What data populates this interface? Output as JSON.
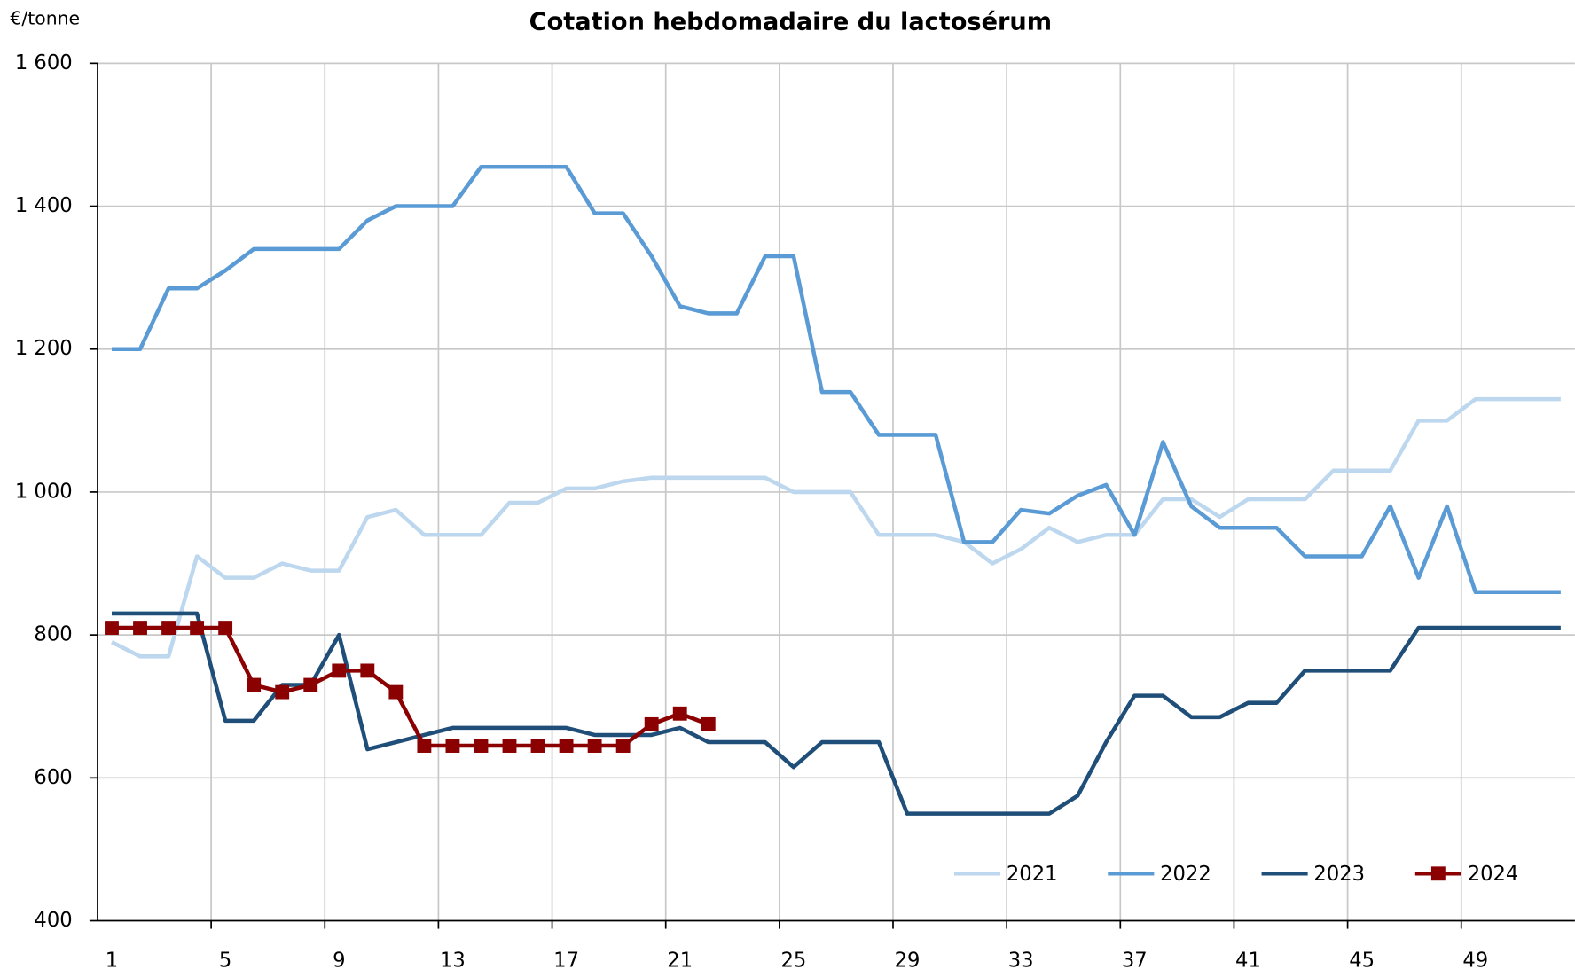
{
  "chart_data": {
    "type": "line",
    "title": "Cotation hebdomadaire  du lactosérum",
    "y_label": "€/tonne",
    "categories": [
      "1",
      null,
      null,
      null,
      "5",
      null,
      null,
      null,
      "9",
      null,
      null,
      null,
      "13",
      null,
      null,
      null,
      "17",
      null,
      null,
      null,
      "21",
      null,
      null,
      null,
      "25",
      null,
      null,
      null,
      "29",
      null,
      null,
      null,
      "33",
      null,
      null,
      null,
      "37",
      null,
      null,
      null,
      "41",
      null,
      null,
      null,
      "45",
      null,
      null,
      null,
      "49",
      null,
      null,
      null
    ],
    "ylim": [
      400,
      1600
    ],
    "yticks": [
      400,
      600,
      800,
      {
        "value": 1000,
        "label": "1 000"
      },
      {
        "value": 1200,
        "label": "1 200"
      },
      {
        "value": 1400,
        "label": "1 400"
      },
      {
        "value": 1600,
        "label": "1 600"
      }
    ],
    "grid": true,
    "legend": "bottom-right",
    "series": [
      {
        "name": "2021",
        "color": "#bdd7ee",
        "values": [
          790,
          770,
          770,
          910,
          880,
          880,
          900,
          890,
          890,
          965,
          975,
          940,
          940,
          940,
          985,
          985,
          1005,
          1005,
          1015,
          1020,
          1020,
          1020,
          1020,
          1020,
          1000,
          1000,
          1000,
          940,
          940,
          940,
          930,
          900,
          920,
          950,
          930,
          940,
          940,
          990,
          990,
          965,
          990,
          990,
          990,
          1030,
          1030,
          1030,
          1100,
          1100,
          1130,
          1130,
          1130,
          1130
        ]
      },
      {
        "name": "2022",
        "color": "#5b9bd5",
        "values": [
          1200,
          1200,
          1285,
          1285,
          1310,
          1340,
          1340,
          1340,
          1340,
          1380,
          1400,
          1400,
          1400,
          1455,
          1455,
          1455,
          1455,
          1390,
          1390,
          1330,
          1260,
          1250,
          1250,
          1330,
          1330,
          1140,
          1140,
          1080,
          1080,
          1080,
          930,
          930,
          975,
          970,
          995,
          1010,
          940,
          1070,
          980,
          950,
          950,
          950,
          910,
          910,
          910,
          980,
          880,
          980,
          860,
          860,
          860,
          860
        ]
      },
      {
        "name": "2023",
        "color": "#1f4e79",
        "values": [
          830,
          830,
          830,
          830,
          680,
          680,
          730,
          730,
          800,
          640,
          650,
          660,
          670,
          670,
          670,
          670,
          670,
          660,
          660,
          660,
          670,
          650,
          650,
          650,
          615,
          650,
          650,
          650,
          550,
          550,
          550,
          550,
          550,
          550,
          575,
          650,
          715,
          715,
          685,
          685,
          705,
          705,
          750,
          750,
          750,
          750,
          810,
          810,
          810,
          810,
          810,
          810
        ]
      },
      {
        "name": "2024",
        "color": "#8b0000",
        "marker": "square",
        "values": [
          810,
          810,
          810,
          810,
          810,
          730,
          720,
          730,
          750,
          750,
          720,
          645,
          645,
          645,
          645,
          645,
          645,
          645,
          645,
          675,
          690,
          675,
          null,
          null,
          null,
          null,
          null,
          null,
          null,
          null,
          null,
          null,
          null,
          null,
          null,
          null,
          null,
          null,
          null,
          null,
          null,
          null,
          null,
          null,
          null,
          null,
          null,
          null,
          null,
          null,
          null,
          null
        ]
      }
    ]
  }
}
